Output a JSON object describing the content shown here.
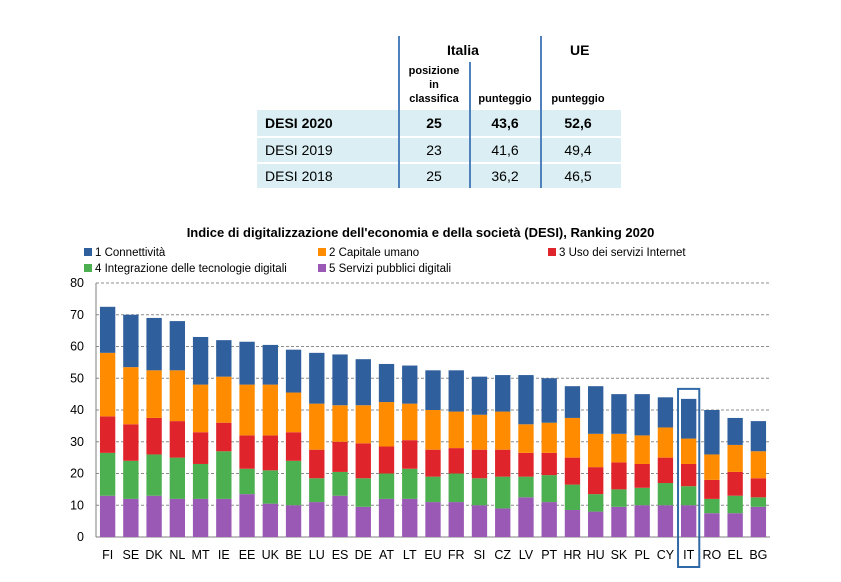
{
  "table": {
    "italia_header": "Italia",
    "ue_header": "UE",
    "col_posizione": [
      "posizione",
      "in",
      "classifica"
    ],
    "col_punteggio_it": "punteggio",
    "col_punteggio_ue": "punteggio",
    "rows": [
      {
        "label": "DESI 2020",
        "posizione": "25",
        "punteggio": "43,6",
        "ue": "52,6",
        "bold": true,
        "highlight": true
      },
      {
        "label": "DESI 2019",
        "posizione": "23",
        "punteggio": "41,6",
        "ue": "49,4",
        "bold": false,
        "highlight": true
      },
      {
        "label": "DESI 2018",
        "posizione": "25",
        "punteggio": "36,2",
        "ue": "46,5",
        "bold": false,
        "highlight": true
      }
    ],
    "band_color": "#daeef3",
    "line_color": "#4f81bd"
  },
  "chart_data": {
    "type": "bar",
    "stacked": true,
    "title": "Indice di digitalizzazione dell'economia e della società (DESI), Ranking 2020",
    "ylim": [
      0,
      80
    ],
    "yticks": [
      0,
      10,
      20,
      30,
      40,
      50,
      60,
      70,
      80
    ],
    "grid": true,
    "highlight_category": "IT",
    "categories": [
      "FI",
      "SE",
      "DK",
      "NL",
      "MT",
      "IE",
      "EE",
      "UK",
      "BE",
      "LU",
      "ES",
      "DE",
      "AT",
      "LT",
      "EU",
      "FR",
      "SI",
      "CZ",
      "LV",
      "PT",
      "HR",
      "HU",
      "SK",
      "PL",
      "CY",
      "IT",
      "RO",
      "EL",
      "BG"
    ],
    "series": [
      {
        "name": "5 Servizi pubblici digitali",
        "color": "#9b59b6",
        "values": [
          13.0,
          12.0,
          13.0,
          12.0,
          12.0,
          12.0,
          13.5,
          10.5,
          10.0,
          11.0,
          13.0,
          9.5,
          12.0,
          12.0,
          11.0,
          11.0,
          10.0,
          9.0,
          12.5,
          11.0,
          8.5,
          8.0,
          9.5,
          10.0,
          10.0,
          10.0,
          7.5,
          7.5,
          9.5
        ]
      },
      {
        "name": "4 Integrazione delle tecnologie digitali",
        "color": "#4caf50",
        "values": [
          13.5,
          12.0,
          13.0,
          13.0,
          11.0,
          15.0,
          8.0,
          10.5,
          14.0,
          7.5,
          7.5,
          9.0,
          8.0,
          9.5,
          8.0,
          9.0,
          8.5,
          10.0,
          6.5,
          8.5,
          8.0,
          5.5,
          5.5,
          5.5,
          7.0,
          6.0,
          4.5,
          5.5,
          3.0
        ]
      },
      {
        "name": "3 Uso dei servizi Internet",
        "color": "#e0242b",
        "values": [
          11.5,
          11.5,
          11.5,
          11.5,
          10.0,
          9.0,
          10.5,
          11.0,
          9.0,
          9.0,
          9.5,
          11.0,
          8.5,
          9.0,
          8.5,
          8.0,
          9.0,
          8.5,
          7.5,
          7.0,
          8.5,
          8.5,
          8.5,
          7.5,
          8.0,
          7.0,
          6.0,
          7.5,
          6.0
        ]
      },
      {
        "name": "2 Capitale umano",
        "color": "#ff8c00",
        "values": [
          20.0,
          18.0,
          15.0,
          16.0,
          15.0,
          14.5,
          16.0,
          16.0,
          12.5,
          14.5,
          11.5,
          12.0,
          14.0,
          11.5,
          12.5,
          11.5,
          11.0,
          12.0,
          9.0,
          9.5,
          12.5,
          10.5,
          9.0,
          9.0,
          9.5,
          8.0,
          8.0,
          8.5,
          8.5
        ]
      },
      {
        "name": "1 Connettività",
        "color": "#2f5f9c",
        "values": [
          14.5,
          16.5,
          16.5,
          15.5,
          15.0,
          11.5,
          13.5,
          12.5,
          13.5,
          16.0,
          16.0,
          14.5,
          12.0,
          12.0,
          12.5,
          13.0,
          12.0,
          11.5,
          15.5,
          14.0,
          10.0,
          15.0,
          12.5,
          13.0,
          9.5,
          12.5,
          14.0,
          8.5,
          9.5
        ]
      }
    ],
    "legend_order": [
      "1 Connettività",
      "2 Capitale umano",
      "3 Uso dei servizi Internet",
      "4 Integrazione delle tecnologie digitali",
      "5 Servizi pubblici digitali"
    ]
  }
}
